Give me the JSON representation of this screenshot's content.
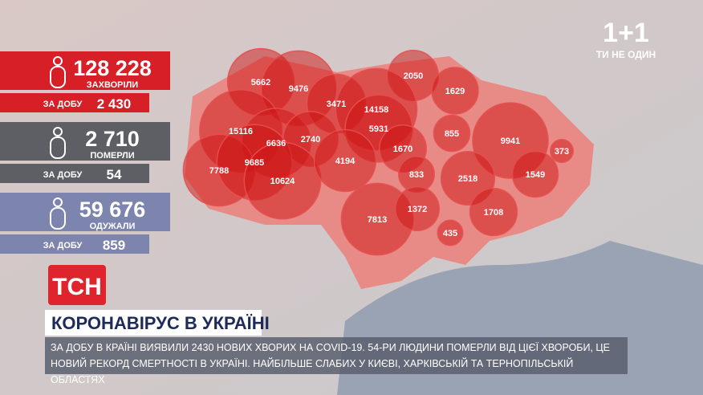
{
  "logo": {
    "brand": "1+1",
    "slogan": "ТИ НЕ ОДИН"
  },
  "stats": [
    {
      "total": "128 228",
      "label": "ЗАХВОРІЛИ",
      "daily_label": "ЗА ДОБУ",
      "daily": "2 430"
    },
    {
      "total": "2 710",
      "label": "ПОМЕРЛИ",
      "daily_label": "ЗА ДОБУ",
      "daily": "54"
    },
    {
      "total": "59 676",
      "label": "ОДУЖАЛИ",
      "daily_label": "ЗА ДОБУ",
      "daily": "859"
    }
  ],
  "map": {
    "bubbles": [
      5662,
      9476,
      3471,
      2050,
      1629,
      14158,
      15116,
      6636,
      2740,
      5931,
      855,
      9941,
      373,
      7788,
      9685,
      10624,
      4194,
      1670,
      833,
      2518,
      1549,
      7813,
      1372,
      1708,
      435
    ]
  },
  "channel": "ТСН",
  "headline": "КОРОНАВІРУС В УКРАЇНІ",
  "ticker": "ЗА ДОБУ В КРАЇНІ ВИЯВИЛИ 2430 НОВИХ ХВОРИХ НА COVID-19. 54-РИ ЛЮДИНИ ПОМЕРЛИ ВІД ЦІЄЇ ХВОРОБИ, ЦЕ НОВИЙ РЕКОРД СМЕРТНОСТІ В УКРАЇНІ. НАЙБІЛЬШЕ СЛАБИХ У КИЄВІ, ХАРКІВСЬКІЙ ТА ТЕРНОПІЛЬСЬКІЙ ОБЛАСТЯХ"
}
